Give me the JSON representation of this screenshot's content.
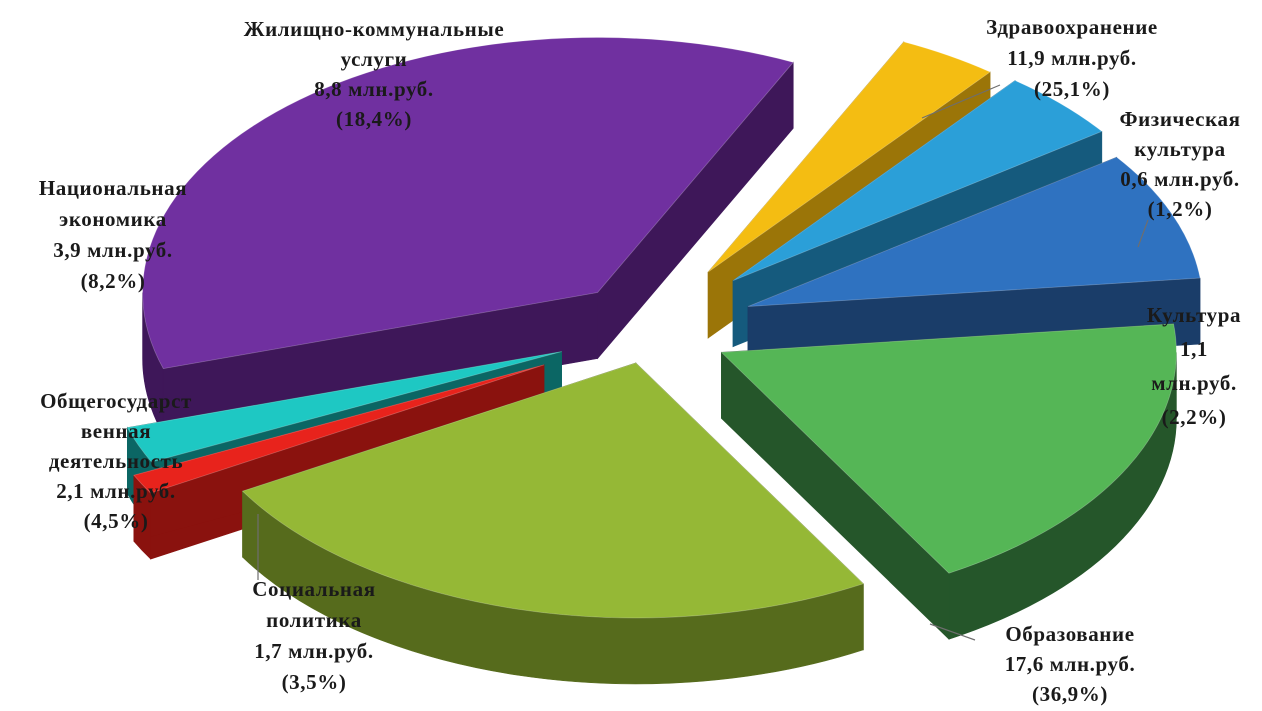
{
  "chart_data": {
    "type": "pie",
    "title": "",
    "unit": "млн.руб.",
    "slices": [
      {
        "name": "Здравоохранение",
        "value": 11.9,
        "percent": 25.1,
        "label_lines": [
          "Здравоохранение",
          "11,9 млн.руб.",
          "(25,1%)"
        ],
        "color": "#95b836",
        "side_color": "#566b1c"
      },
      {
        "name": "Физическая культура",
        "value": 0.6,
        "percent": 1.2,
        "label_lines": [
          "Физическая",
          "культура",
          "0,6 млн.руб.",
          "(1,2%)"
        ],
        "color": "#e8231c",
        "side_color": "#8a120e"
      },
      {
        "name": "Культура",
        "value": 1.1,
        "percent": 2.2,
        "label_lines": [
          "Культура",
          "1,1",
          "млн.руб.",
          "(2,2%)"
        ],
        "color": "#1ec8c3",
        "side_color": "#0b6664"
      },
      {
        "name": "Образование",
        "value": 17.6,
        "percent": 36.9,
        "label_lines": [
          "Образование",
          "17,6 млн.руб.",
          "(36,9%)"
        ],
        "color": "#7030a0",
        "side_color": "#3e1759"
      },
      {
        "name": "Социальная политика",
        "value": 1.7,
        "percent": 3.5,
        "label_lines": [
          "Социальная",
          "политика",
          "1,7 млн.руб.",
          "(3,5%)"
        ],
        "color": "#f4bd12",
        "side_color": "#9b7508"
      },
      {
        "name": "Общегосударственная деятельность",
        "value": 2.1,
        "percent": 4.5,
        "label_lines": [
          "Общегосударст",
          "венная",
          "деятельность",
          "2,1 млн.руб.",
          "(4,5%)"
        ],
        "color": "#2b9fd8",
        "side_color": "#155a7d"
      },
      {
        "name": "Национальная экономика",
        "value": 3.9,
        "percent": 8.2,
        "label_lines": [
          "Национальная",
          "экономика",
          "3,9 млн.руб.",
          "(8,2%)"
        ],
        "color": "#2f72c0",
        "side_color": "#1a3d69"
      },
      {
        "name": "Жилищно-коммунальные услуги",
        "value": 8.8,
        "percent": 18.4,
        "label_lines": [
          "Жилищно-коммунальные",
          "услуги",
          "8,8 млн.руб.",
          "(18,4%)"
        ],
        "color": "#55b656",
        "side_color": "#25562a"
      }
    ],
    "legend": "none",
    "style": "3d-exploded"
  }
}
